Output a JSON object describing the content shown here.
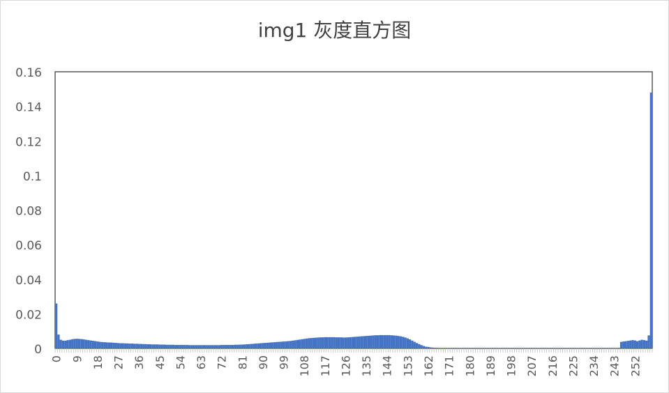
{
  "chart_data": {
    "type": "bar",
    "title": "img1 灰度直方图",
    "xlabel": "",
    "ylabel": "",
    "ylim": [
      0,
      0.16
    ],
    "yticks": [
      "0",
      "0.02",
      "0.04",
      "0.06",
      "0.08",
      "0.1",
      "0.12",
      "0.14",
      "0.16"
    ],
    "xtick_labels": [
      "0",
      "9",
      "18",
      "27",
      "36",
      "45",
      "54",
      "63",
      "72",
      "81",
      "90",
      "99",
      "108",
      "117",
      "126",
      "135",
      "144",
      "153",
      "162",
      "171",
      "180",
      "189",
      "198",
      "207",
      "216",
      "225",
      "234",
      "243",
      "252"
    ],
    "categories_range": [
      0,
      255
    ],
    "colors": {
      "bar": "#4472C4",
      "axis": "#595959",
      "frame": "#d9d9d9"
    },
    "values": [
      0.026,
      0.008,
      0.005,
      0.0045,
      0.0045,
      0.0048,
      0.005,
      0.0053,
      0.0055,
      0.0056,
      0.0055,
      0.0054,
      0.0052,
      0.005,
      0.0048,
      0.0046,
      0.0044,
      0.0042,
      0.004,
      0.0038,
      0.0037,
      0.0036,
      0.0035,
      0.0034,
      0.0034,
      0.0033,
      0.0032,
      0.0031,
      0.003,
      0.003,
      0.0029,
      0.0029,
      0.0028,
      0.0028,
      0.0027,
      0.0027,
      0.0026,
      0.0026,
      0.0025,
      0.0025,
      0.0024,
      0.0024,
      0.0023,
      0.0023,
      0.0023,
      0.0022,
      0.0022,
      0.0022,
      0.0021,
      0.0021,
      0.0021,
      0.0021,
      0.002,
      0.002,
      0.002,
      0.002,
      0.002,
      0.002,
      0.0019,
      0.0019,
      0.0019,
      0.0019,
      0.0019,
      0.0019,
      0.0019,
      0.0019,
      0.0019,
      0.0019,
      0.0019,
      0.0019,
      0.0019,
      0.0019,
      0.002,
      0.002,
      0.002,
      0.002,
      0.002,
      0.002,
      0.0021,
      0.0021,
      0.0022,
      0.0022,
      0.0023,
      0.0024,
      0.0025,
      0.0026,
      0.0027,
      0.0028,
      0.0029,
      0.003,
      0.0031,
      0.0032,
      0.0033,
      0.0034,
      0.0035,
      0.0036,
      0.0037,
      0.0038,
      0.0039,
      0.004,
      0.0041,
      0.0042,
      0.0043,
      0.0045,
      0.0047,
      0.0049,
      0.0051,
      0.0053,
      0.0055,
      0.0057,
      0.0059,
      0.006,
      0.0061,
      0.0062,
      0.0063,
      0.0064,
      0.0064,
      0.0065,
      0.0065,
      0.0065,
      0.0065,
      0.0065,
      0.0064,
      0.0064,
      0.0064,
      0.0063,
      0.0063,
      0.0064,
      0.0065,
      0.0066,
      0.0067,
      0.0068,
      0.0069,
      0.007,
      0.0071,
      0.0072,
      0.0073,
      0.0074,
      0.0075,
      0.0076,
      0.0076,
      0.0077,
      0.0077,
      0.0077,
      0.0077,
      0.0077,
      0.0076,
      0.0075,
      0.0074,
      0.0072,
      0.007,
      0.0067,
      0.0063,
      0.0058,
      0.0052,
      0.0045,
      0.0038,
      0.0031,
      0.0025,
      0.0019,
      0.0014,
      0.001,
      0.0008,
      0.0006,
      0.0005,
      0.0004,
      0.0003,
      0.0002,
      0.0002,
      0.0002,
      0.0002,
      0.0002,
      0.0001,
      0.0001,
      0.0001,
      0.0001,
      0.0001,
      0.0001,
      0.0001,
      0.0001,
      0.0001,
      0.0001,
      0.0001,
      0.0001,
      0.0001,
      0.0001,
      0.0001,
      0.0001,
      0.0001,
      0.0001,
      0.0001,
      0.0001,
      0.0001,
      0.0001,
      0.0001,
      0.0001,
      0.0001,
      0.0001,
      0.0001,
      0.0001,
      0.0001,
      0.0001,
      0.0001,
      0.0001,
      0.0001,
      0.0001,
      0.0001,
      0.0001,
      0.0001,
      0.0001,
      0.0001,
      0.0001,
      0.0001,
      0.0001,
      0.0001,
      0.0001,
      0.0001,
      0.0001,
      0.0001,
      0.0001,
      0.0001,
      0.0001,
      0.0001,
      0.0001,
      0.0001,
      0.0001,
      0.0001,
      0.0001,
      0.0001,
      0.0001,
      0.0001,
      0.0001,
      0.0001,
      0.0001,
      0.0001,
      0.0001,
      0.0001,
      0.0001,
      0.0001,
      0.0001,
      0.0001,
      0.0001,
      0.0001,
      0.0001,
      0.0001,
      0.0003,
      0.0038,
      0.004,
      0.0042,
      0.0044,
      0.0046,
      0.0048,
      0.0046,
      0.0042,
      0.0046,
      0.005,
      0.0048,
      0.0045,
      0.0075,
      0.148
    ]
  }
}
